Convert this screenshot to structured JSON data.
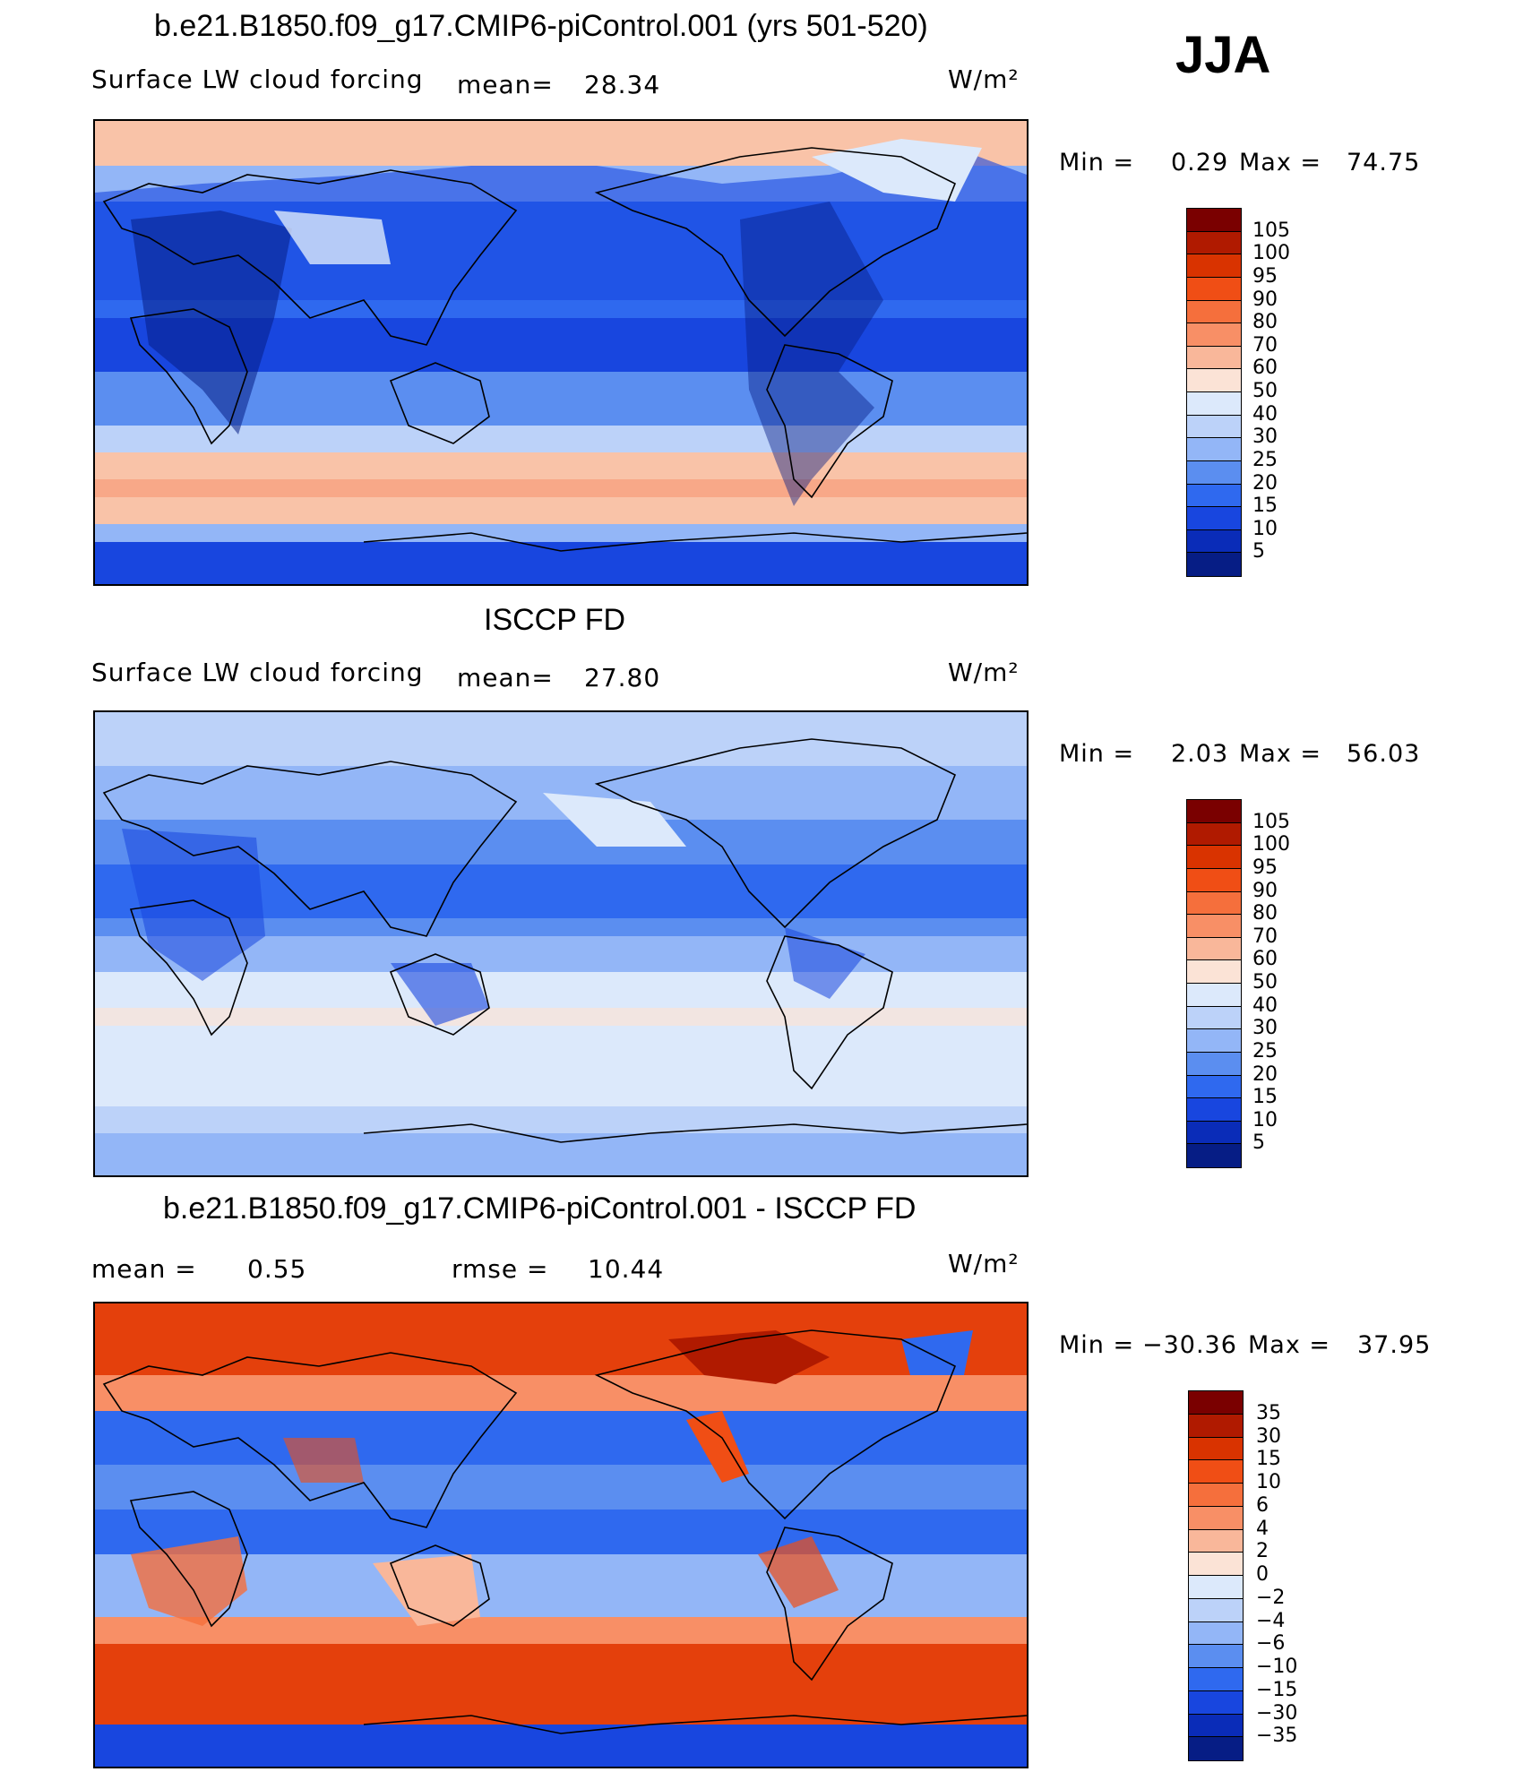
{
  "season": "JJA",
  "units": "W/m²",
  "panels": [
    {
      "title": "b.e21.B1850.f09_g17.CMIP6-piControl.001 (yrs 501-520)",
      "variable": "Surface LW cloud forcing",
      "mean_label": "mean=",
      "mean": "28.34",
      "min_label": "Min =",
      "min": "0.29",
      "max_label": "Max =",
      "max": "74.75",
      "scale": "model"
    },
    {
      "title": "ISCCP FD",
      "variable": "Surface LW cloud forcing",
      "mean_label": "mean=",
      "mean": "27.80",
      "min_label": "Min =",
      "min": "2.03",
      "max_label": "Max =",
      "max": "56.03",
      "scale": "obs"
    },
    {
      "title": "b.e21.B1850.f09_g17.CMIP6-piControl.001 - ISCCP FD",
      "mean_label": "mean =",
      "mean": "0.55",
      "rmse_label": "rmse =",
      "rmse": "10.44",
      "min_label": "Min =",
      "min": "−30.36",
      "max_label": "Max =",
      "max": "37.95",
      "scale": "diff"
    }
  ],
  "colorbars": {
    "abs": {
      "labels": [
        "105",
        "100",
        "95",
        "90",
        "80",
        "70",
        "60",
        "50",
        "40",
        "30",
        "25",
        "20",
        "15",
        "10",
        "5"
      ],
      "colors": [
        "#7a0000",
        "#b01a00",
        "#d93300",
        "#f04e15",
        "#f56f3c",
        "#f88f66",
        "#f9b79a",
        "#fbe3d6",
        "#dce9fb",
        "#bcd2f9",
        "#93b6f7",
        "#5b8ef0",
        "#2f69ef",
        "#1846df",
        "#0a2cb8",
        "#061d85"
      ]
    },
    "diff": {
      "labels": [
        "35",
        "30",
        "15",
        "10",
        "6",
        "4",
        "2",
        "0",
        "−2",
        "−4",
        "−6",
        "−10",
        "−15",
        "−30",
        "−35"
      ],
      "colors": [
        "#7a0000",
        "#b01a00",
        "#d93300",
        "#f04e15",
        "#f56f3c",
        "#f88f66",
        "#f9b79a",
        "#fbe3d6",
        "#dce9fb",
        "#bcd2f9",
        "#93b6f7",
        "#5b8ef0",
        "#2f69ef",
        "#1846df",
        "#0a2cb8",
        "#061d85"
      ]
    }
  }
}
